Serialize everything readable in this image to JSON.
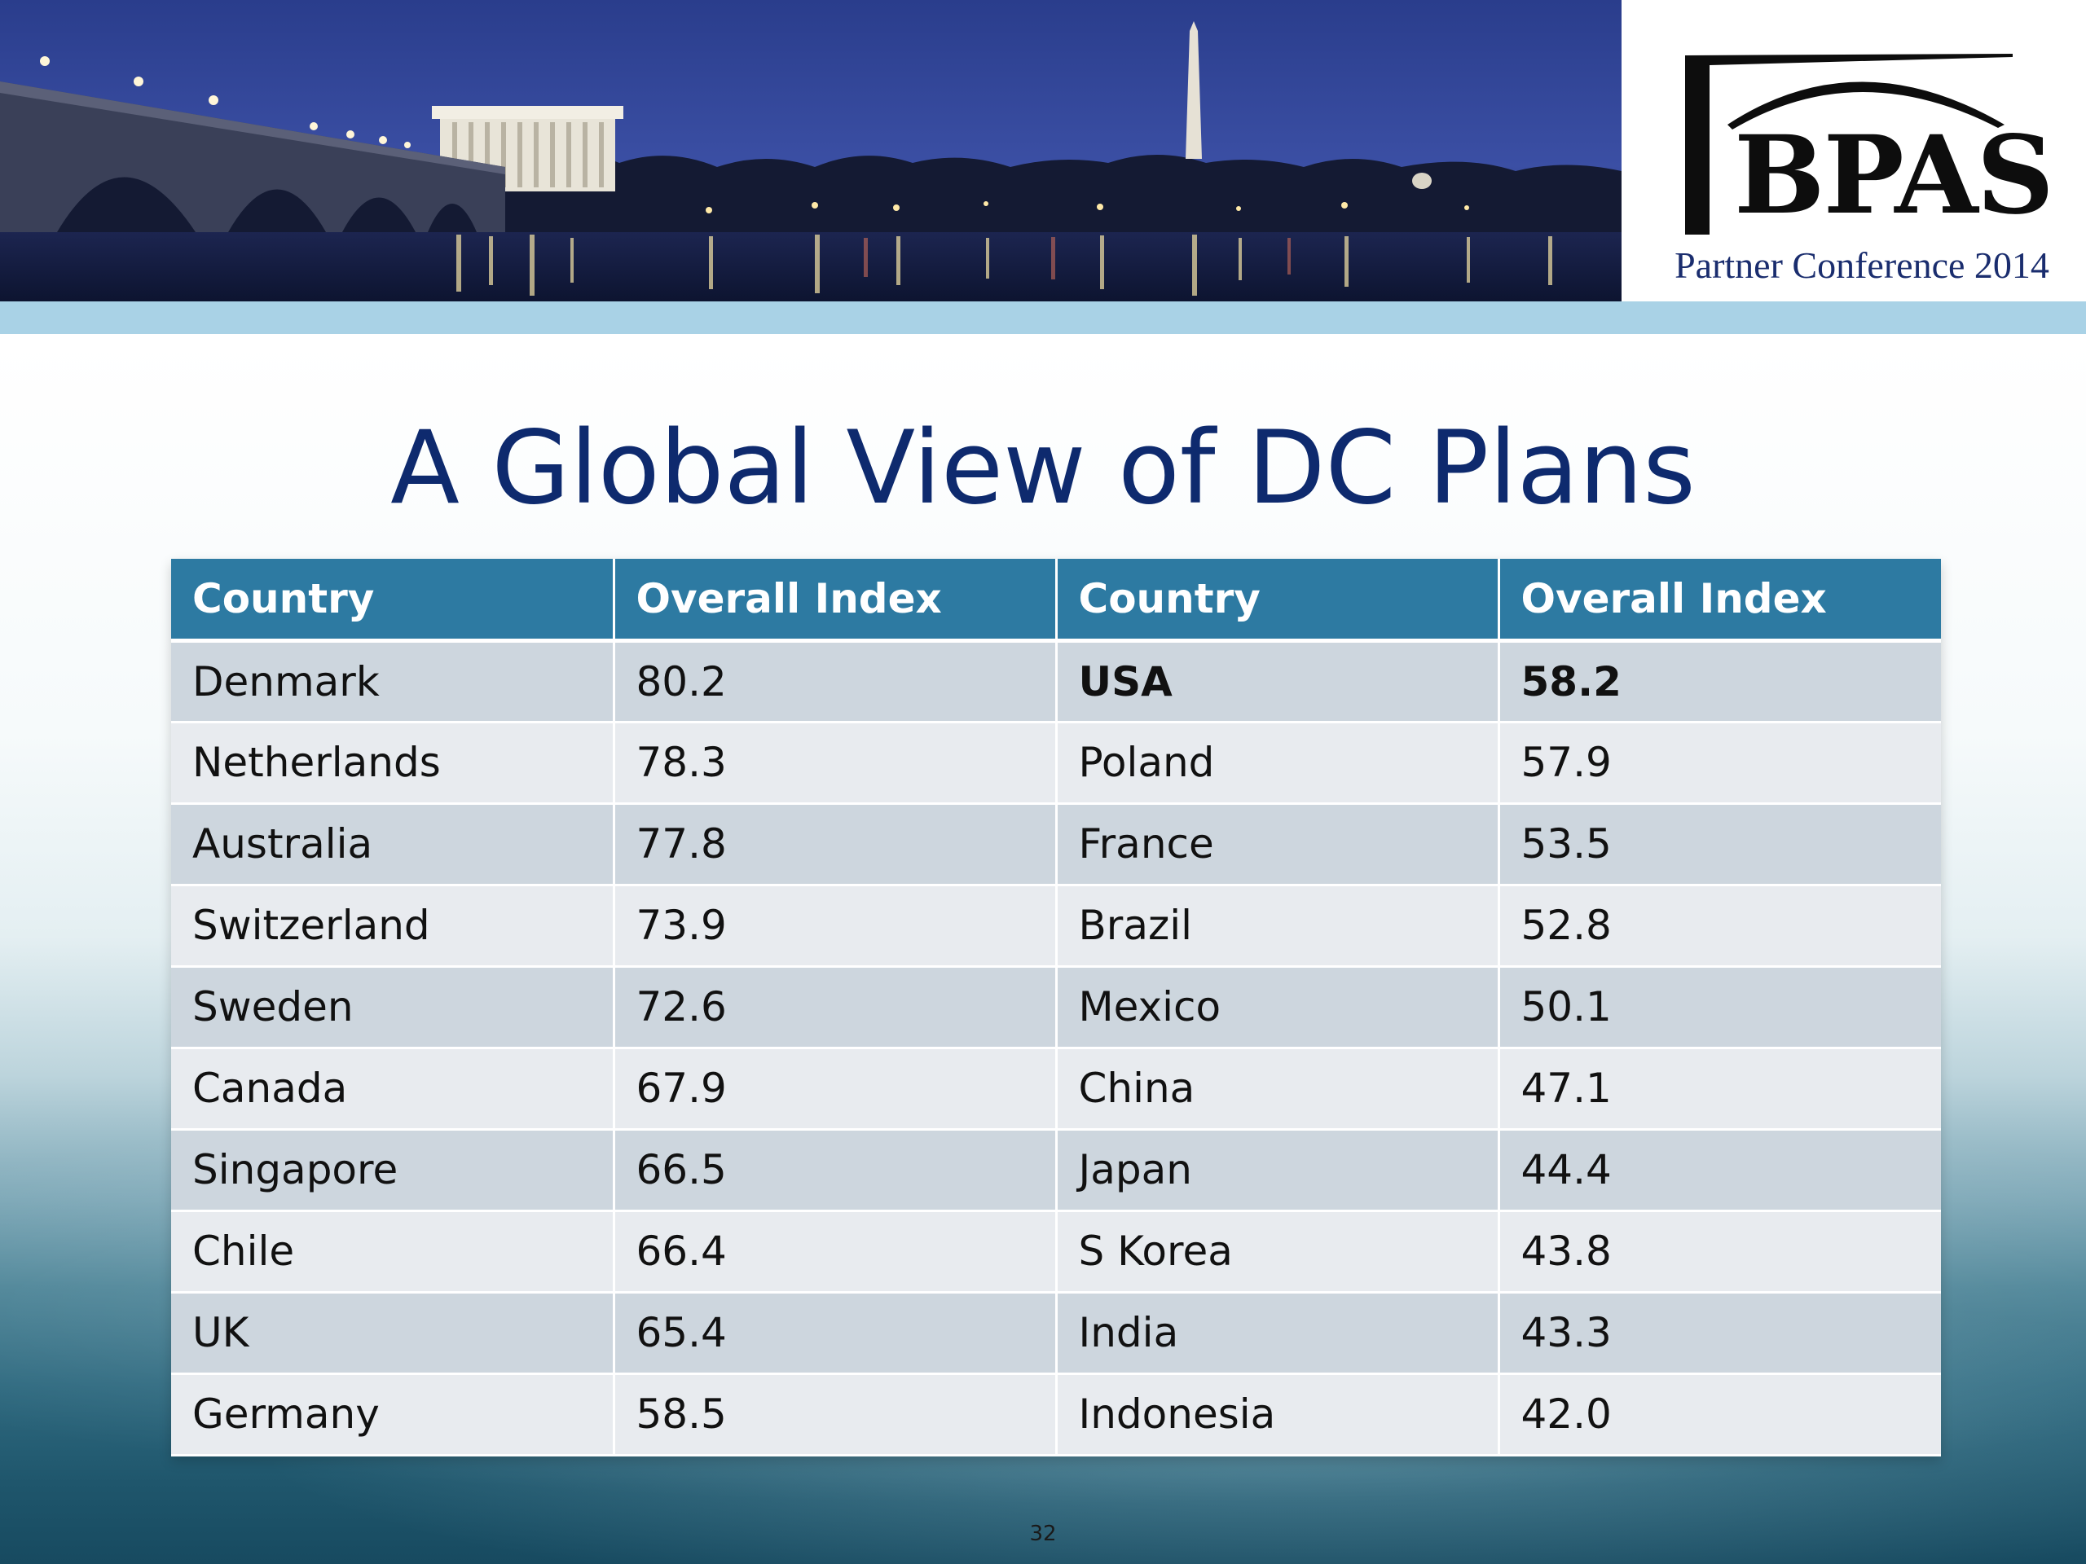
{
  "header": {
    "logo_text": "BPAS",
    "logo_subtitle": "Partner Conference 2014"
  },
  "slide": {
    "title": "A Global View of DC Plans",
    "page_number": "32"
  },
  "table": {
    "headers": [
      "Country",
      "Overall Index",
      "Country",
      "Overall Index"
    ],
    "rows": [
      [
        "Denmark",
        "80.2",
        "USA",
        "58.2"
      ],
      [
        "Netherlands",
        "78.3",
        "Poland",
        "57.9"
      ],
      [
        "Australia",
        "77.8",
        "France",
        "53.5"
      ],
      [
        "Switzerland",
        "73.9",
        "Brazil",
        "52.8"
      ],
      [
        "Sweden",
        "72.6",
        "Mexico",
        "50.1"
      ],
      [
        "Canada",
        "67.9",
        "China",
        "47.1"
      ],
      [
        "Singapore",
        "66.5",
        "Japan",
        "44.4"
      ],
      [
        "Chile",
        "66.4",
        "S Korea",
        "43.8"
      ],
      [
        "UK",
        "65.4",
        "India",
        "43.3"
      ],
      [
        "Germany",
        "58.5",
        "Indonesia",
        "42.0"
      ]
    ],
    "emphasized_cells": [
      "rows.0.2",
      "rows.0.3"
    ]
  },
  "colors": {
    "title": "#0e2a6e",
    "header_fill": "#2d7aa2",
    "row_dark": "#cdd6de",
    "row_light": "#e8ebef",
    "stripe": "#a9d2e6",
    "logo_subtitle": "#1a2d6e"
  }
}
